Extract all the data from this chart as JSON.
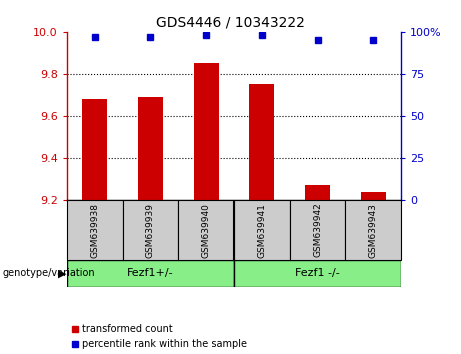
{
  "title": "GDS4446 / 10343222",
  "categories": [
    "GSM639938",
    "GSM639939",
    "GSM639940",
    "GSM639941",
    "GSM639942",
    "GSM639943"
  ],
  "bar_values": [
    9.68,
    9.69,
    9.85,
    9.75,
    9.27,
    9.24
  ],
  "percentile_values": [
    97,
    97,
    98,
    98,
    95,
    95
  ],
  "ylim_left": [
    9.2,
    10.0
  ],
  "ylim_right": [
    0,
    100
  ],
  "yticks_left": [
    9.2,
    9.4,
    9.6,
    9.8,
    10.0
  ],
  "yticks_right": [
    0,
    25,
    50,
    75,
    100
  ],
  "bar_color": "#cc0000",
  "dot_color": "#0000cc",
  "group1_label": "Fezf1+/-",
  "group2_label": "Fezf1 -/-",
  "group_bg_color": "#88ee88",
  "label_bg_color": "#cccccc",
  "legend_bar_label": "transformed count",
  "legend_dot_label": "percentile rank within the sample",
  "genotype_label": "genotype/variation",
  "grid_ticks": [
    9.4,
    9.6,
    9.8
  ]
}
